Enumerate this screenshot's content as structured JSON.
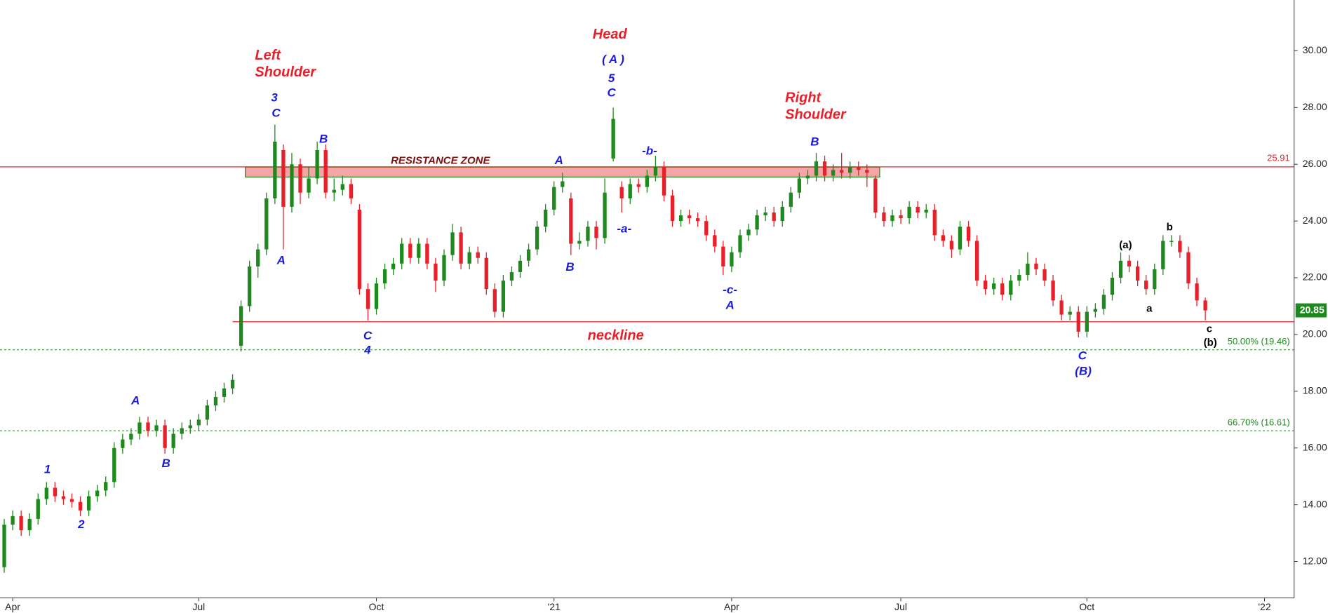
{
  "chart_data": {
    "type": "candlestick",
    "categories": [
      null,
      "Apr",
      null,
      null,
      null,
      null,
      null,
      null,
      null,
      null,
      null,
      null,
      null,
      null,
      null,
      null,
      null,
      null,
      null,
      null,
      null,
      null,
      null,
      "Jul",
      null,
      null,
      null,
      null,
      null,
      null,
      null,
      null,
      null,
      null,
      null,
      null,
      null,
      null,
      null,
      null,
      null,
      null,
      null,
      null,
      "Oct",
      null,
      null,
      null,
      null,
      null,
      null,
      null,
      null,
      null,
      null,
      null,
      null,
      null,
      null,
      null,
      null,
      null,
      null,
      null,
      null,
      "'21",
      null,
      null,
      null,
      null,
      null,
      null,
      null,
      null,
      null,
      null,
      null,
      null,
      null,
      null,
      null,
      null,
      null,
      null,
      null,
      null,
      "Apr",
      null,
      null,
      null,
      null,
      null,
      null,
      null,
      null,
      null,
      null,
      null,
      null,
      null,
      null,
      null,
      null,
      null,
      null,
      null,
      "Jul",
      null,
      null,
      null,
      null,
      null,
      null,
      null,
      null,
      null,
      null,
      null,
      null,
      null,
      null,
      null,
      null,
      null,
      null,
      null,
      null,
      null,
      "Oct",
      null,
      null,
      null,
      null,
      null,
      null,
      null,
      null,
      null,
      null,
      null,
      null,
      null,
      null,
      null,
      null,
      null,
      null,
      null,
      null,
      "'22",
      null,
      null,
      null
    ],
    "open": [
      11.8,
      13.3,
      13.6,
      13.1,
      13.5,
      14.2,
      14.6,
      14.3,
      14.2,
      14.1,
      13.8,
      14.3,
      14.5,
      14.8,
      16.0,
      16.3,
      16.5,
      16.9,
      16.6,
      16.8,
      16.0,
      16.5,
      16.7,
      16.8,
      17.0,
      17.5,
      17.8,
      18.1,
      19.6,
      21.0,
      22.4,
      23.0,
      24.8,
      26.5,
      24.5,
      26.0,
      25.0,
      25.5,
      26.5,
      25.0,
      25.1,
      25.3,
      24.4,
      21.6,
      20.9,
      21.8,
      22.3,
      22.5,
      23.2,
      22.7,
      23.2,
      22.5,
      21.9,
      22.8,
      23.6,
      22.5,
      22.9,
      22.7,
      21.6,
      20.8,
      21.9,
      22.2,
      22.6,
      23.0,
      23.8,
      24.4,
      25.2,
      24.8,
      23.2,
      23.3,
      23.8,
      23.4,
      26.2,
      25.2,
      24.8,
      25.3,
      25.2,
      25.6,
      25.9,
      24.9,
      24.0,
      24.2,
      24.1,
      24.0,
      23.5,
      23.1,
      22.4,
      22.9,
      23.5,
      23.7,
      24.2,
      24.3,
      24.0,
      24.5,
      25.0,
      25.5,
      25.6,
      26.1,
      25.6,
      25.8,
      25.7,
      25.9,
      25.8,
      25.5,
      24.3,
      24.0,
      24.2,
      24.1,
      24.5,
      24.3,
      24.4,
      23.5,
      23.3,
      23.0,
      23.8,
      23.3,
      21.9,
      21.6,
      21.8,
      21.4,
      21.9,
      22.1,
      22.5,
      22.3,
      21.9,
      21.2,
      20.7,
      20.8,
      20.1,
      20.8,
      20.9,
      21.4,
      22.0,
      22.6,
      22.4,
      21.9,
      21.6,
      22.3,
      23.3,
      23.3,
      22.9,
      21.8,
      21.2,
      null,
      null,
      null,
      null,
      null,
      null,
      null,
      null,
      null,
      null
    ],
    "high": [
      13.5,
      13.8,
      13.8,
      13.7,
      14.4,
      14.8,
      14.8,
      14.5,
      14.4,
      14.3,
      14.5,
      14.7,
      15.0,
      16.2,
      16.5,
      16.7,
      17.1,
      17.1,
      17.0,
      17.0,
      16.7,
      16.9,
      17.0,
      17.2,
      17.7,
      18.0,
      18.3,
      18.6,
      21.2,
      22.6,
      23.2,
      25.0,
      27.4,
      26.7,
      26.4,
      26.2,
      25.9,
      26.8,
      26.7,
      25.5,
      25.6,
      25.5,
      24.6,
      21.8,
      22.0,
      22.5,
      22.7,
      23.4,
      23.4,
      23.4,
      23.4,
      22.7,
      23.0,
      23.9,
      23.8,
      23.1,
      23.1,
      22.9,
      21.8,
      22.1,
      22.4,
      22.8,
      23.2,
      24.0,
      24.6,
      25.4,
      25.7,
      25.0,
      23.6,
      24.0,
      24.0,
      25.5,
      28.0,
      25.4,
      25.5,
      25.5,
      25.8,
      26.3,
      26.1,
      25.1,
      24.4,
      24.4,
      24.3,
      24.2,
      23.7,
      23.3,
      23.1,
      23.7,
      23.9,
      24.4,
      24.5,
      24.5,
      24.7,
      25.2,
      25.7,
      25.8,
      26.4,
      26.3,
      26.0,
      26.4,
      26.1,
      26.1,
      26.0,
      25.6,
      24.5,
      24.4,
      24.4,
      24.7,
      24.7,
      24.6,
      24.6,
      23.7,
      23.5,
      24.0,
      24.0,
      23.5,
      22.1,
      22.0,
      22.0,
      22.1,
      22.3,
      22.9,
      22.7,
      22.5,
      22.1,
      21.4,
      21.0,
      21.0,
      21.0,
      21.1,
      21.6,
      22.2,
      22.9,
      22.8,
      22.6,
      22.1,
      22.5,
      23.5,
      23.5,
      23.5,
      23.1,
      22.0,
      21.3,
      null,
      null,
      null,
      null,
      null,
      null,
      null,
      null,
      null,
      null
    ],
    "low": [
      11.6,
      13.1,
      12.9,
      12.9,
      13.3,
      14.0,
      14.1,
      14.0,
      13.9,
      13.6,
      13.6,
      14.1,
      14.3,
      14.6,
      15.8,
      16.1,
      16.3,
      16.4,
      16.4,
      15.8,
      15.8,
      16.3,
      16.5,
      16.6,
      16.8,
      17.3,
      17.6,
      17.9,
      19.4,
      20.8,
      22.0,
      22.8,
      24.6,
      23.0,
      24.3,
      24.6,
      24.8,
      25.3,
      24.8,
      24.7,
      24.9,
      24.6,
      21.4,
      20.5,
      20.7,
      21.6,
      22.1,
      22.3,
      22.5,
      22.5,
      22.3,
      21.5,
      21.7,
      22.6,
      22.3,
      22.3,
      22.5,
      21.4,
      20.6,
      20.6,
      21.7,
      22.0,
      22.4,
      22.8,
      23.6,
      24.2,
      25.0,
      22.8,
      23.0,
      23.1,
      23.0,
      23.2,
      26.1,
      24.3,
      24.6,
      25.0,
      25.0,
      25.4,
      24.7,
      23.8,
      23.8,
      23.9,
      23.8,
      23.3,
      22.9,
      22.1,
      22.2,
      22.7,
      23.3,
      23.5,
      24.0,
      23.8,
      23.8,
      24.3,
      24.8,
      25.3,
      25.4,
      25.4,
      25.4,
      25.5,
      25.5,
      25.6,
      25.2,
      24.1,
      23.8,
      23.8,
      23.9,
      23.9,
      24.1,
      24.1,
      23.3,
      23.1,
      22.7,
      22.8,
      23.1,
      21.7,
      21.4,
      21.4,
      21.2,
      21.2,
      21.7,
      21.9,
      22.1,
      21.7,
      21.0,
      20.5,
      20.5,
      19.9,
      19.9,
      20.6,
      20.7,
      21.2,
      21.8,
      22.2,
      21.7,
      21.4,
      21.4,
      22.1,
      23.1,
      22.7,
      21.6,
      21.0,
      20.5,
      null,
      null,
      null,
      null,
      null,
      null,
      null,
      null,
      null,
      null
    ],
    "close": [
      13.3,
      13.6,
      13.1,
      13.5,
      14.2,
      14.6,
      14.3,
      14.2,
      14.1,
      13.8,
      14.3,
      14.5,
      14.8,
      16.0,
      16.3,
      16.5,
      16.9,
      16.6,
      16.8,
      16.0,
      16.5,
      16.7,
      16.8,
      17.0,
      17.5,
      17.8,
      18.1,
      18.4,
      21.0,
      22.4,
      23.0,
      24.8,
      26.8,
      24.5,
      26.0,
      25.0,
      25.5,
      26.5,
      25.0,
      25.1,
      25.3,
      24.8,
      21.6,
      20.9,
      21.8,
      22.3,
      22.5,
      23.2,
      22.7,
      23.2,
      22.5,
      21.9,
      22.8,
      23.6,
      22.5,
      22.9,
      22.7,
      21.6,
      20.8,
      21.9,
      22.2,
      22.6,
      23.0,
      23.8,
      24.4,
      25.2,
      25.4,
      23.2,
      23.3,
      23.8,
      23.4,
      25.0,
      27.6,
      24.8,
      25.3,
      25.2,
      25.6,
      25.9,
      24.9,
      24.0,
      24.2,
      24.1,
      24.0,
      23.5,
      23.1,
      22.4,
      22.9,
      23.5,
      23.7,
      24.2,
      24.3,
      24.0,
      24.5,
      25.0,
      25.5,
      25.6,
      26.1,
      25.6,
      25.8,
      25.7,
      25.9,
      25.8,
      25.7,
      24.3,
      24.0,
      24.2,
      24.1,
      24.5,
      24.3,
      24.4,
      23.5,
      23.3,
      23.0,
      23.8,
      23.3,
      21.9,
      21.6,
      21.8,
      21.4,
      21.9,
      22.1,
      22.5,
      22.3,
      21.9,
      21.2,
      20.7,
      20.8,
      20.1,
      20.8,
      20.9,
      21.4,
      22.0,
      22.6,
      22.4,
      21.9,
      21.6,
      22.3,
      23.3,
      23.3,
      22.9,
      21.8,
      21.2,
      20.85,
      null,
      null,
      null,
      null,
      null,
      null,
      null,
      null,
      null,
      null
    ],
    "up_color": "#1e8a1e",
    "down_color": "#e8202a",
    "ylim": [
      10.72,
      31.79
    ],
    "yticks": [
      {
        "value": 12,
        "label": "12.00"
      },
      {
        "value": 14,
        "label": "14.00"
      },
      {
        "value": 16,
        "label": "16.00"
      },
      {
        "value": 18,
        "label": "18.00"
      },
      {
        "value": 20,
        "label": "20.00"
      },
      {
        "value": 22,
        "label": "22.00"
      },
      {
        "value": 24,
        "label": "24.00"
      },
      {
        "value": 26,
        "label": "26.00"
      },
      {
        "value": 28,
        "label": "28.00"
      },
      {
        "value": 30,
        "label": "30.00"
      }
    ],
    "resistance": {
      "value": 25.91,
      "color": "#e8202a"
    },
    "neckline": {
      "value": 20.45,
      "label": "neckline",
      "from": 27,
      "color": "#e8202a"
    },
    "zone": {
      "low": 25.55,
      "high": 25.9,
      "from": 29,
      "to": 103,
      "label": "RESISTANCE ZONE"
    },
    "levels": [
      {
        "value": 19.46,
        "label": "50.00% (19.46)"
      },
      {
        "value": 16.61,
        "label": "66.70% (16.61)"
      }
    ],
    "level_color": "#1e8a1e",
    "annotations": [
      "Left",
      "Shoulder",
      "Head",
      "Right",
      "Shoulder",
      "3",
      "C",
      "B",
      "A",
      "C",
      "4",
      "1",
      "2",
      "A",
      "B",
      "( A )",
      "5",
      "C",
      "A",
      "B",
      "-a-",
      "-b-",
      "-c-",
      "A",
      "B",
      "C",
      "(B)",
      "(a)",
      "b",
      "a",
      "c",
      "(b)"
    ]
  }
}
